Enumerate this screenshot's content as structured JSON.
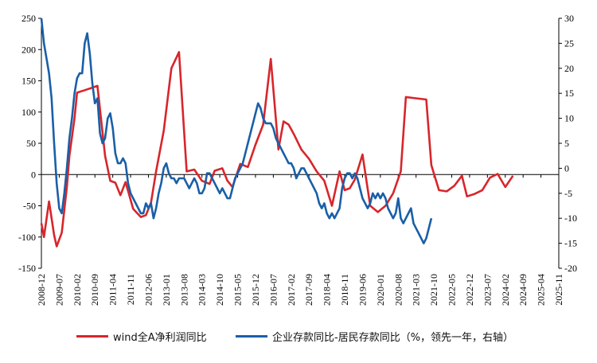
{
  "chart_data": {
    "type": "line",
    "title": "",
    "left_axis": {
      "min": -150,
      "max": 250,
      "ticks": [
        -150,
        -100,
        -50,
        0,
        50,
        100,
        150,
        200,
        250
      ]
    },
    "right_axis": {
      "min": -20,
      "max": 30,
      "ticks": [
        -20,
        -15,
        -10,
        -5,
        0,
        5,
        10,
        15,
        20,
        25,
        30
      ]
    },
    "x_ticks": [
      "2008-12",
      "2009-07",
      "2010-02",
      "2010-09",
      "2011-04",
      "2011-11",
      "2012-06",
      "2013-01",
      "2013-08",
      "2014-03",
      "2014-10",
      "2015-05",
      "2015-12",
      "2016-07",
      "2017-02",
      "2017-09",
      "2018-04",
      "2018-11",
      "2019-06",
      "2020-01",
      "2020-08",
      "2021-03",
      "2021-10",
      "2022-05",
      "2022-12",
      "2023-07",
      "2024-02",
      "2024-09",
      "2025-04",
      "2025-11"
    ],
    "grid": false,
    "legend_position": "bottom",
    "series": [
      {
        "name": "wind全A净利润同比",
        "axis": "left",
        "color": "#d7262b",
        "points": [
          [
            "2008-12",
            -78
          ],
          [
            "2009-01",
            -100
          ],
          [
            "2009-03",
            -43
          ],
          [
            "2009-05",
            -97
          ],
          [
            "2009-06",
            -115
          ],
          [
            "2009-08",
            -93
          ],
          [
            "2009-10",
            -20
          ],
          [
            "2009-11",
            30
          ],
          [
            "2010-01",
            90
          ],
          [
            "2010-02",
            131
          ],
          [
            "2010-05",
            135
          ],
          [
            "2010-08",
            139
          ],
          [
            "2010-10",
            142
          ],
          [
            "2011-01",
            30
          ],
          [
            "2011-03",
            -10
          ],
          [
            "2011-05",
            -13
          ],
          [
            "2011-07",
            -33
          ],
          [
            "2011-09",
            -12
          ],
          [
            "2011-12",
            -55
          ],
          [
            "2012-03",
            -68
          ],
          [
            "2012-05",
            -65
          ],
          [
            "2012-07",
            -45
          ],
          [
            "2012-09",
            5
          ],
          [
            "2012-12",
            70
          ],
          [
            "2013-03",
            170
          ],
          [
            "2013-06",
            196
          ],
          [
            "2013-09",
            5
          ],
          [
            "2013-12",
            8
          ],
          [
            "2014-03",
            -10
          ],
          [
            "2014-06",
            -15
          ],
          [
            "2014-08",
            6
          ],
          [
            "2014-11",
            10
          ],
          [
            "2015-01",
            -10
          ],
          [
            "2015-03",
            -20
          ],
          [
            "2015-06",
            17
          ],
          [
            "2015-09",
            12
          ],
          [
            "2015-12",
            48
          ],
          [
            "2016-03",
            80
          ],
          [
            "2016-06",
            185
          ],
          [
            "2016-09",
            40
          ],
          [
            "2016-11",
            85
          ],
          [
            "2017-01",
            80
          ],
          [
            "2017-03",
            65
          ],
          [
            "2017-06",
            40
          ],
          [
            "2017-09",
            25
          ],
          [
            "2017-12",
            5
          ],
          [
            "2018-03",
            -10
          ],
          [
            "2018-06",
            -50
          ],
          [
            "2018-09",
            5
          ],
          [
            "2018-11",
            -25
          ],
          [
            "2019-01",
            -22
          ],
          [
            "2019-03",
            -8
          ],
          [
            "2019-06",
            32
          ],
          [
            "2019-09",
            -50
          ],
          [
            "2019-12",
            -60
          ],
          [
            "2020-03",
            -50
          ],
          [
            "2020-06",
            -30
          ],
          [
            "2020-09",
            5
          ],
          [
            "2020-11",
            124
          ],
          [
            "2021-03",
            122
          ],
          [
            "2021-07",
            120
          ],
          [
            "2021-09",
            15
          ],
          [
            "2021-12",
            -25
          ],
          [
            "2022-03",
            -27
          ],
          [
            "2022-06",
            -18
          ],
          [
            "2022-09",
            -2
          ],
          [
            "2022-11",
            -35
          ],
          [
            "2023-02",
            -31
          ],
          [
            "2023-05",
            -25
          ],
          [
            "2023-08",
            -5
          ],
          [
            "2023-11",
            1
          ],
          [
            "2024-02",
            -20
          ],
          [
            "2024-05",
            -2
          ]
        ]
      },
      {
        "name": "企业存款同比-居民存款同比（%，领先一年，右轴）",
        "axis": "right",
        "color": "#1a5fa8",
        "points": [
          [
            "2008-12",
            30
          ],
          [
            "2009-01",
            25
          ],
          [
            "2009-02",
            22
          ],
          [
            "2009-03",
            19
          ],
          [
            "2009-04",
            14
          ],
          [
            "2009-05",
            5
          ],
          [
            "2009-06",
            -3
          ],
          [
            "2009-07",
            -8
          ],
          [
            "2009-08",
            -9
          ],
          [
            "2009-09",
            -5
          ],
          [
            "2009-10",
            0
          ],
          [
            "2009-11",
            6
          ],
          [
            "2009-12",
            10
          ],
          [
            "2010-01",
            15
          ],
          [
            "2010-02",
            18
          ],
          [
            "2010-03",
            19
          ],
          [
            "2010-04",
            19
          ],
          [
            "2010-05",
            25
          ],
          [
            "2010-06",
            27
          ],
          [
            "2010-07",
            23
          ],
          [
            "2010-08",
            17
          ],
          [
            "2010-09",
            13
          ],
          [
            "2010-10",
            14
          ],
          [
            "2010-11",
            7
          ],
          [
            "2010-12",
            5
          ],
          [
            "2011-01",
            6
          ],
          [
            "2011-02",
            10
          ],
          [
            "2011-03",
            11
          ],
          [
            "2011-04",
            8
          ],
          [
            "2011-05",
            3
          ],
          [
            "2011-06",
            1
          ],
          [
            "2011-07",
            1
          ],
          [
            "2011-08",
            2
          ],
          [
            "2011-09",
            1
          ],
          [
            "2011-10",
            -3
          ],
          [
            "2011-11",
            -5
          ],
          [
            "2011-12",
            -6
          ],
          [
            "2012-01",
            -7
          ],
          [
            "2012-02",
            -8
          ],
          [
            "2012-03",
            -9
          ],
          [
            "2012-04",
            -9
          ],
          [
            "2012-05",
            -7
          ],
          [
            "2012-06",
            -8
          ],
          [
            "2012-07",
            -7
          ],
          [
            "2012-08",
            -10
          ],
          [
            "2012-09",
            -8
          ],
          [
            "2012-10",
            -5
          ],
          [
            "2012-11",
            -3
          ],
          [
            "2012-12",
            0
          ],
          [
            "2013-01",
            1
          ],
          [
            "2013-02",
            -1
          ],
          [
            "2013-03",
            -2
          ],
          [
            "2013-04",
            -2
          ],
          [
            "2013-05",
            -3
          ],
          [
            "2013-06",
            -2
          ],
          [
            "2013-07",
            -2
          ],
          [
            "2013-08",
            -2
          ],
          [
            "2013-09",
            -3
          ],
          [
            "2013-10",
            -4
          ],
          [
            "2013-11",
            -3
          ],
          [
            "2013-12",
            -2
          ],
          [
            "2014-01",
            -3
          ],
          [
            "2014-02",
            -5
          ],
          [
            "2014-03",
            -5
          ],
          [
            "2014-04",
            -4
          ],
          [
            "2014-05",
            -1
          ],
          [
            "2014-06",
            -1
          ],
          [
            "2014-07",
            -2
          ],
          [
            "2014-08",
            -3
          ],
          [
            "2014-09",
            -4
          ],
          [
            "2014-10",
            -5
          ],
          [
            "2014-11",
            -4
          ],
          [
            "2014-12",
            -5
          ],
          [
            "2015-01",
            -6
          ],
          [
            "2015-02",
            -6
          ],
          [
            "2015-03",
            -4
          ],
          [
            "2015-04",
            -2
          ],
          [
            "2015-05",
            -1
          ],
          [
            "2015-06",
            0
          ],
          [
            "2015-07",
            1
          ],
          [
            "2015-08",
            3
          ],
          [
            "2015-09",
            5
          ],
          [
            "2015-10",
            7
          ],
          [
            "2015-11",
            9
          ],
          [
            "2015-12",
            11
          ],
          [
            "2016-01",
            13
          ],
          [
            "2016-02",
            12
          ],
          [
            "2016-03",
            10
          ],
          [
            "2016-04",
            9
          ],
          [
            "2016-05",
            9
          ],
          [
            "2016-06",
            9
          ],
          [
            "2016-07",
            8
          ],
          [
            "2016-08",
            6
          ],
          [
            "2016-09",
            5
          ],
          [
            "2016-10",
            4
          ],
          [
            "2016-11",
            3
          ],
          [
            "2016-12",
            2
          ],
          [
            "2017-01",
            1
          ],
          [
            "2017-02",
            1
          ],
          [
            "2017-03",
            0
          ],
          [
            "2017-04",
            -2
          ],
          [
            "2017-05",
            -1
          ],
          [
            "2017-06",
            0
          ],
          [
            "2017-07",
            0
          ],
          [
            "2017-08",
            -1
          ],
          [
            "2017-09",
            -2
          ],
          [
            "2017-10",
            -3
          ],
          [
            "2017-11",
            -4
          ],
          [
            "2017-12",
            -5
          ],
          [
            "2018-01",
            -7
          ],
          [
            "2018-02",
            -8
          ],
          [
            "2018-03",
            -7
          ],
          [
            "2018-04",
            -9
          ],
          [
            "2018-05",
            -10
          ],
          [
            "2018-06",
            -9
          ],
          [
            "2018-07",
            -10
          ],
          [
            "2018-08",
            -9
          ],
          [
            "2018-09",
            -8
          ],
          [
            "2018-10",
            -4
          ],
          [
            "2018-11",
            -2
          ],
          [
            "2018-12",
            -1
          ],
          [
            "2019-01",
            -1
          ],
          [
            "2019-02",
            -2
          ],
          [
            "2019-03",
            -1
          ],
          [
            "2019-04",
            -2
          ],
          [
            "2019-05",
            -4
          ],
          [
            "2019-06",
            -6
          ],
          [
            "2019-07",
            -7
          ],
          [
            "2019-08",
            -8
          ],
          [
            "2019-09",
            -7
          ],
          [
            "2019-10",
            -5
          ],
          [
            "2019-11",
            -6
          ],
          [
            "2019-12",
            -5
          ],
          [
            "2020-01",
            -6
          ],
          [
            "2020-02",
            -5
          ],
          [
            "2020-03",
            -6
          ],
          [
            "2020-04",
            -8
          ],
          [
            "2020-05",
            -9
          ],
          [
            "2020-06",
            -10
          ],
          [
            "2020-07",
            -9
          ],
          [
            "2020-08",
            -6
          ],
          [
            "2020-09",
            -10
          ],
          [
            "2020-10",
            -11
          ],
          [
            "2020-11",
            -10
          ],
          [
            "2020-12",
            -9
          ],
          [
            "2020-13",
            -8
          ],
          [
            "2020-14",
            -11
          ],
          [
            "2020-15",
            -12
          ],
          [
            "2020-16",
            -13
          ],
          [
            "2020-17",
            -14
          ],
          [
            "2020-18",
            -15
          ],
          [
            "2020-19",
            -14
          ],
          [
            "2020-20",
            -12
          ],
          [
            "2020-21",
            -10
          ]
        ]
      }
    ]
  },
  "legend": {
    "red_label": "wind全A净利润同比",
    "blue_label": "企业存款同比-居民存款同比（%，领先一年，右轴）"
  }
}
